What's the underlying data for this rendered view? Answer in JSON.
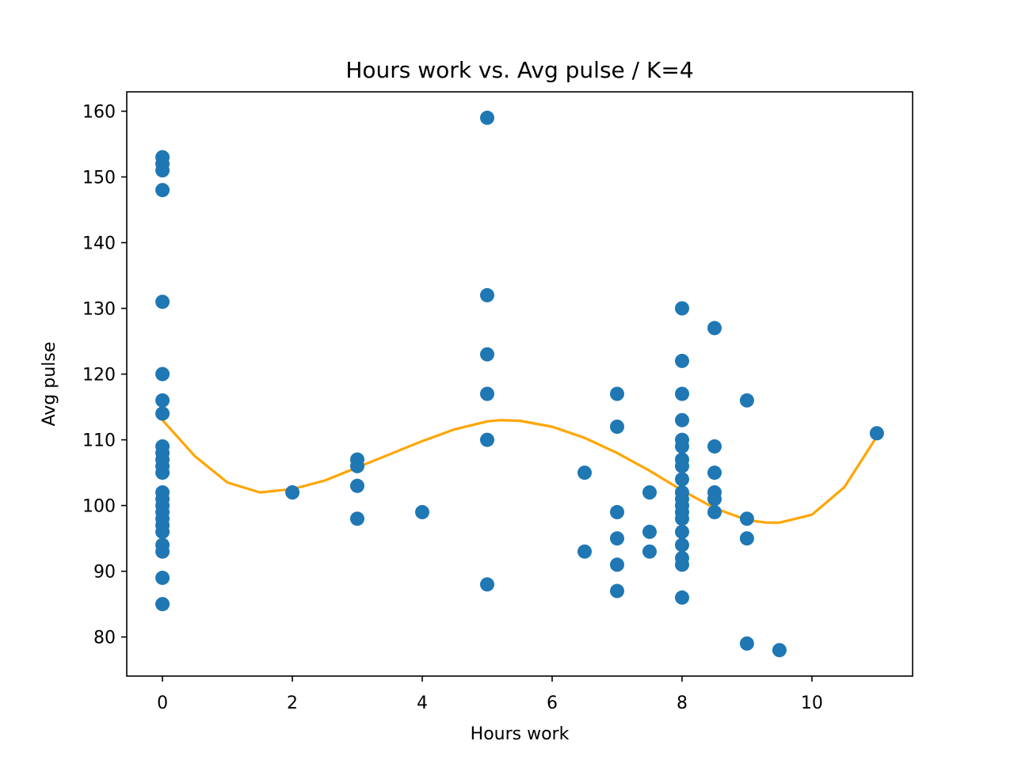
{
  "chart_data": {
    "type": "scatter",
    "title": "Hours work vs. Avg pulse / K=4",
    "xlabel": "Hours work",
    "ylabel": "Avg pulse",
    "xlim": [
      -0.55,
      11.55
    ],
    "ylim": [
      74.05,
      162.95
    ],
    "x_ticks": [
      0,
      2,
      4,
      6,
      8,
      10
    ],
    "y_ticks": [
      80,
      90,
      100,
      110,
      120,
      130,
      140,
      150,
      160
    ],
    "grid": false,
    "legend": "none",
    "point_color": "#1f77b4",
    "curve_color": "#ffa500",
    "points": [
      [
        0,
        153
      ],
      [
        0,
        152
      ],
      [
        0,
        151
      ],
      [
        0,
        148
      ],
      [
        0,
        131
      ],
      [
        0,
        120
      ],
      [
        0,
        116
      ],
      [
        0,
        114
      ],
      [
        0,
        109
      ],
      [
        0,
        108
      ],
      [
        0,
        107
      ],
      [
        0,
        106
      ],
      [
        0,
        105
      ],
      [
        0,
        102
      ],
      [
        0,
        101
      ],
      [
        0,
        100
      ],
      [
        0,
        99
      ],
      [
        0,
        98
      ],
      [
        0,
        97
      ],
      [
        0,
        96
      ],
      [
        0,
        94
      ],
      [
        0,
        93
      ],
      [
        0,
        89
      ],
      [
        0,
        85
      ],
      [
        2,
        102
      ],
      [
        3,
        107
      ],
      [
        3,
        106
      ],
      [
        3,
        103
      ],
      [
        3,
        98
      ],
      [
        4,
        99
      ],
      [
        5,
        159
      ],
      [
        5,
        132
      ],
      [
        5,
        123
      ],
      [
        5,
        117
      ],
      [
        5,
        110
      ],
      [
        5,
        88
      ],
      [
        6.5,
        105
      ],
      [
        6.5,
        93
      ],
      [
        7,
        117
      ],
      [
        7,
        112
      ],
      [
        7,
        99
      ],
      [
        7,
        95
      ],
      [
        7,
        91
      ],
      [
        7,
        87
      ],
      [
        7.5,
        102
      ],
      [
        7.5,
        96
      ],
      [
        7.5,
        93
      ],
      [
        8,
        130
      ],
      [
        8,
        122
      ],
      [
        8,
        117
      ],
      [
        8,
        113
      ],
      [
        8,
        110
      ],
      [
        8,
        109
      ],
      [
        8,
        107
      ],
      [
        8,
        106
      ],
      [
        8,
        104
      ],
      [
        8,
        102
      ],
      [
        8,
        101
      ],
      [
        8,
        100
      ],
      [
        8,
        99
      ],
      [
        8,
        98
      ],
      [
        8,
        96
      ],
      [
        8,
        94
      ],
      [
        8,
        92
      ],
      [
        8,
        91
      ],
      [
        8,
        86
      ],
      [
        8.5,
        127
      ],
      [
        8.5,
        109
      ],
      [
        8.5,
        105
      ],
      [
        8.5,
        102
      ],
      [
        8.5,
        101
      ],
      [
        8.5,
        99
      ],
      [
        9,
        116
      ],
      [
        9,
        98
      ],
      [
        9,
        95
      ],
      [
        9,
        79
      ],
      [
        9.5,
        78
      ],
      [
        11,
        111
      ]
    ],
    "fit_curve": [
      [
        0,
        113
      ],
      [
        0.5,
        107.5
      ],
      [
        1,
        103.5
      ],
      [
        1.5,
        102
      ],
      [
        2,
        102.5
      ],
      [
        2.5,
        103.8
      ],
      [
        3,
        105.8
      ],
      [
        3.5,
        107.8
      ],
      [
        4,
        109.8
      ],
      [
        4.5,
        111.6
      ],
      [
        5,
        112.8
      ],
      [
        5.2,
        113
      ],
      [
        5.5,
        112.9
      ],
      [
        6,
        112
      ],
      [
        6.5,
        110.3
      ],
      [
        7,
        108
      ],
      [
        7.5,
        105.3
      ],
      [
        8,
        102.3
      ],
      [
        8.5,
        99.6
      ],
      [
        9,
        97.8
      ],
      [
        9.3,
        97.4
      ],
      [
        9.5,
        97.4
      ],
      [
        10,
        98.6
      ],
      [
        10.5,
        102.8
      ],
      [
        11,
        110.5
      ]
    ]
  }
}
